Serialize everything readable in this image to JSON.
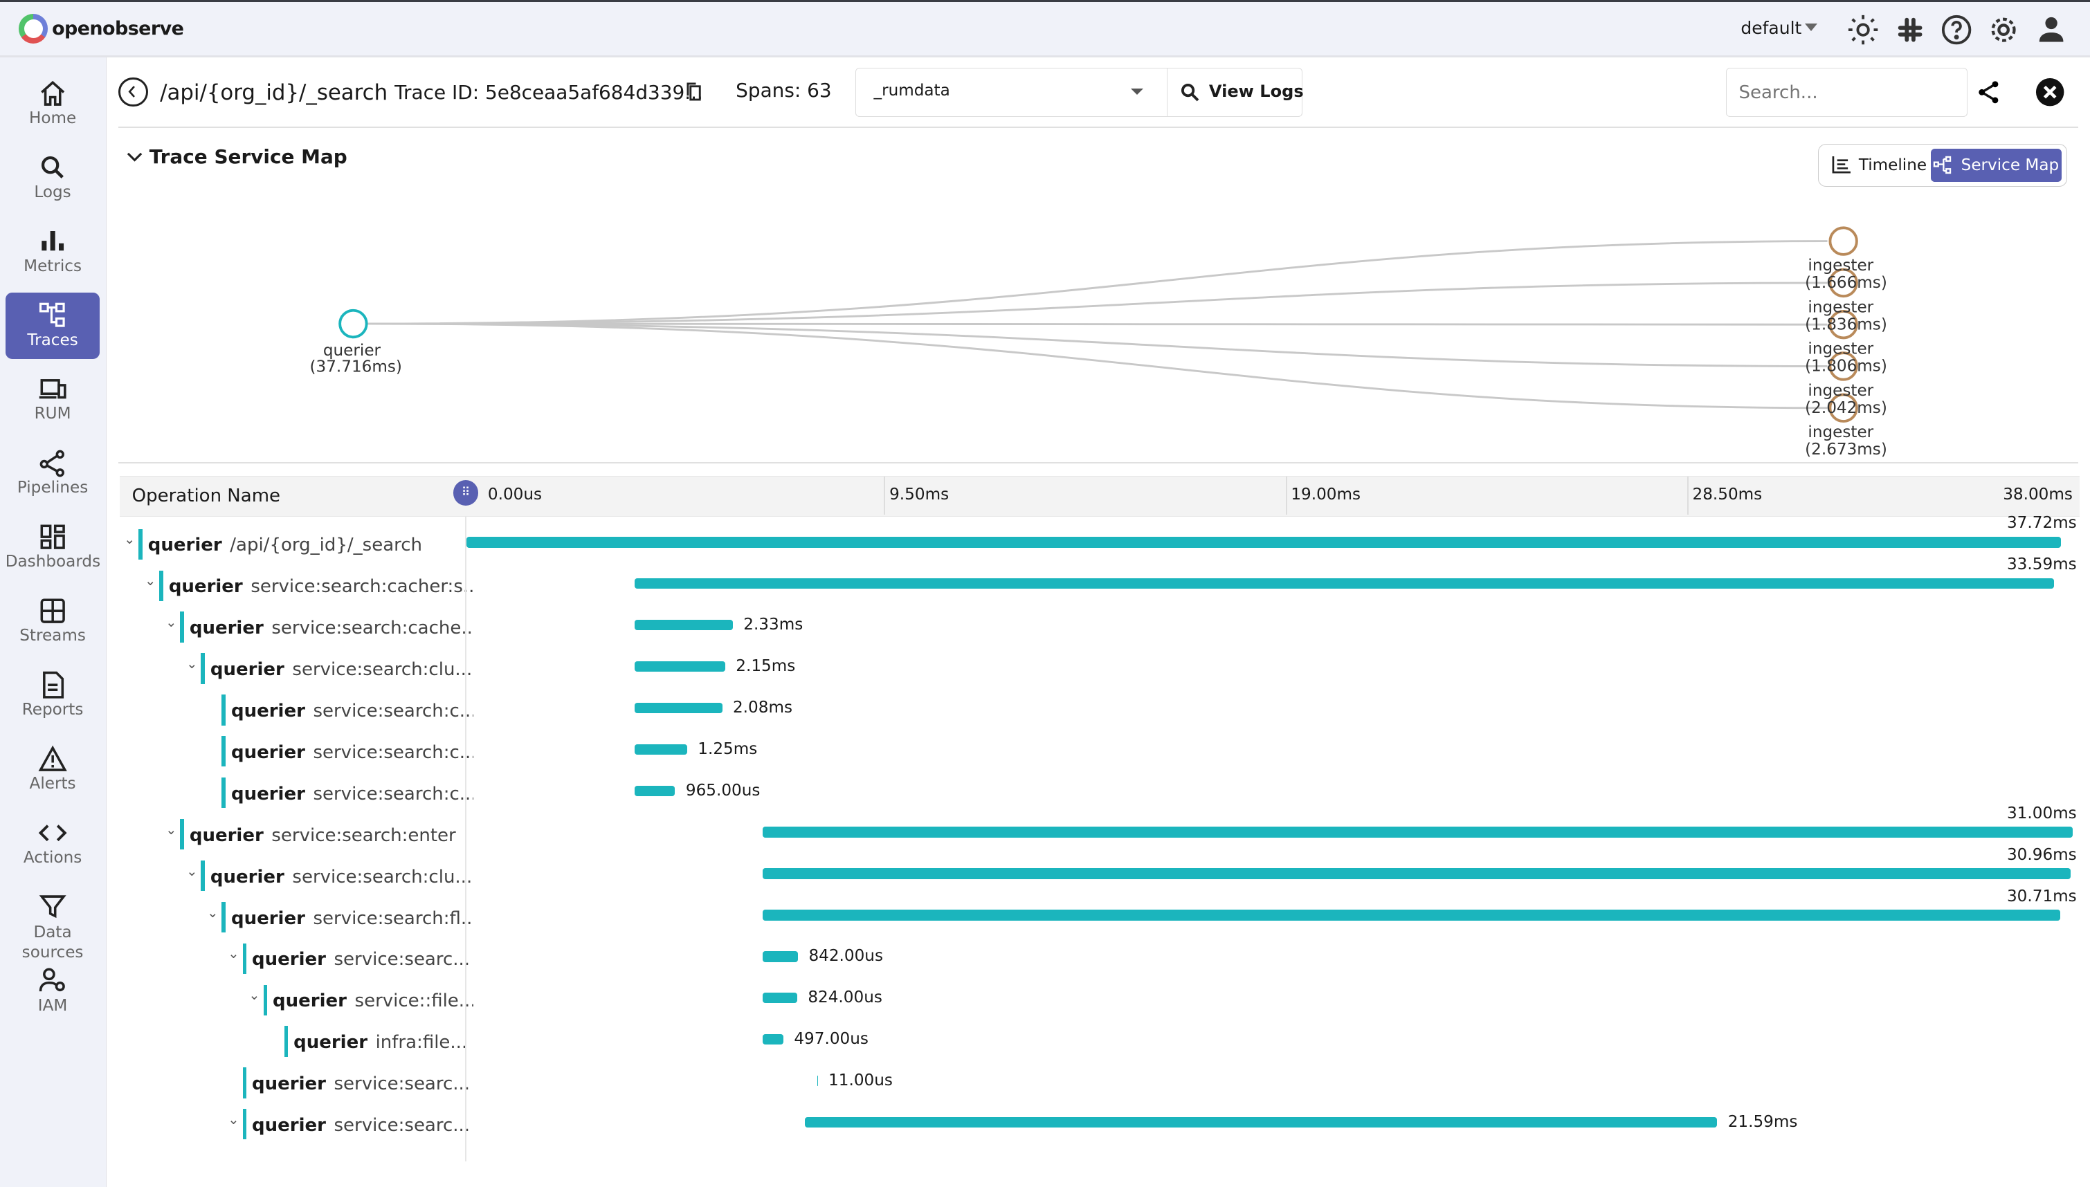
{
  "app": {
    "name": "openobserve",
    "org": "default"
  },
  "topbar_icons": [
    "sun-icon",
    "slack-icon",
    "help-icon",
    "settings-icon",
    "user-icon"
  ],
  "sidebar": {
    "items": [
      {
        "label": "Home",
        "icon": "home-icon"
      },
      {
        "label": "Logs",
        "icon": "search-icon"
      },
      {
        "label": "Metrics",
        "icon": "bar-chart-icon"
      },
      {
        "label": "Traces",
        "icon": "traces-icon",
        "active": true
      },
      {
        "label": "RUM",
        "icon": "devices-icon"
      },
      {
        "label": "Pipelines",
        "icon": "pipeline-icon"
      },
      {
        "label": "Dashboards",
        "icon": "dashboard-icon"
      },
      {
        "label": "Streams",
        "icon": "streams-icon"
      },
      {
        "label": "Reports",
        "icon": "report-icon"
      },
      {
        "label": "Alerts",
        "icon": "alert-icon"
      },
      {
        "label": "Actions",
        "icon": "code-icon"
      },
      {
        "label": "Data sources",
        "icon": "filter-icon"
      },
      {
        "label": "IAM",
        "icon": "iam-icon"
      }
    ]
  },
  "header": {
    "title": "/api/{org_id}/_search",
    "trace_id": "Trace ID: 5e8ceaa5af684d339...",
    "spans": "Spans: 63",
    "stream": "_rumdata",
    "view_logs": "View Logs",
    "search_placeholder": "Search..."
  },
  "service_map": {
    "title": "Trace Service Map",
    "toggle": {
      "timeline": "Timeline",
      "service_map": "Service Map",
      "active": "service_map"
    },
    "root": {
      "name": "querier",
      "duration": "(37.716ms)",
      "color": "#1bb5bd"
    },
    "children": [
      {
        "name": "ingester",
        "duration": "(1.666ms)"
      },
      {
        "name": "ingester",
        "duration": "(1.836ms)"
      },
      {
        "name": "ingester",
        "duration": "(1.806ms)"
      },
      {
        "name": "ingester",
        "duration": "(2.042ms)"
      },
      {
        "name": "ingester",
        "duration": "(2.673ms)"
      }
    ],
    "child_color": "#b98a5a"
  },
  "timeline": {
    "column_header": "Operation Name",
    "ticks": [
      "0.00us",
      "9.50ms",
      "19.00ms",
      "28.50ms",
      "38.00ms"
    ],
    "max_ms": 38,
    "bar_color": "#1bb5bd",
    "spans": [
      {
        "service": "querier",
        "operation": "/api/{org_id}/_search",
        "depth": 0,
        "collapsible": true,
        "start_ms": 0,
        "duration_ms": 37.72,
        "duration": "37.72ms"
      },
      {
        "service": "querier",
        "operation": "service:search:cacher:s...",
        "depth": 1,
        "collapsible": true,
        "start_ms": 3.97,
        "duration_ms": 33.59,
        "duration": "33.59ms"
      },
      {
        "service": "querier",
        "operation": "service:search:cache...",
        "depth": 2,
        "collapsible": true,
        "start_ms": 3.97,
        "duration_ms": 2.33,
        "duration": "2.33ms"
      },
      {
        "service": "querier",
        "operation": "service:search:clu...",
        "depth": 3,
        "collapsible": true,
        "start_ms": 3.97,
        "duration_ms": 2.15,
        "duration": "2.15ms"
      },
      {
        "service": "querier",
        "operation": "service:search:c...",
        "depth": 4,
        "collapsible": false,
        "start_ms": 3.97,
        "duration_ms": 2.08,
        "duration": "2.08ms"
      },
      {
        "service": "querier",
        "operation": "service:search:c...",
        "depth": 4,
        "collapsible": false,
        "start_ms": 3.97,
        "duration_ms": 1.25,
        "duration": "1.25ms"
      },
      {
        "service": "querier",
        "operation": "service:search:c...",
        "depth": 4,
        "collapsible": false,
        "start_ms": 3.97,
        "duration_ms": 0.965,
        "duration": "965.00us"
      },
      {
        "service": "querier",
        "operation": "service:search:enter",
        "depth": 2,
        "collapsible": true,
        "start_ms": 7.0,
        "duration_ms": 31.0,
        "duration": "31.00ms"
      },
      {
        "service": "querier",
        "operation": "service:search:clu...",
        "depth": 3,
        "collapsible": true,
        "start_ms": 7.0,
        "duration_ms": 30.96,
        "duration": "30.96ms"
      },
      {
        "service": "querier",
        "operation": "service:search:fl...",
        "depth": 4,
        "collapsible": true,
        "start_ms": 7.0,
        "duration_ms": 30.71,
        "duration": "30.71ms"
      },
      {
        "service": "querier",
        "operation": "service:searc...",
        "depth": 5,
        "collapsible": true,
        "start_ms": 7.0,
        "duration_ms": 0.842,
        "duration": "842.00us"
      },
      {
        "service": "querier",
        "operation": "service::file...",
        "depth": 6,
        "collapsible": true,
        "start_ms": 7.0,
        "duration_ms": 0.824,
        "duration": "824.00us"
      },
      {
        "service": "querier",
        "operation": "infra:file...",
        "depth": 7,
        "collapsible": false,
        "start_ms": 7.0,
        "duration_ms": 0.497,
        "duration": "497.00us"
      },
      {
        "service": "querier",
        "operation": "service:searc...",
        "depth": 5,
        "collapsible": false,
        "start_ms": 8.3,
        "duration_ms": 0.011,
        "duration": "11.00us"
      },
      {
        "service": "querier",
        "operation": "service:searc...",
        "depth": 5,
        "collapsible": true,
        "start_ms": 8.0,
        "duration_ms": 21.59,
        "duration": "21.59ms"
      }
    ]
  }
}
